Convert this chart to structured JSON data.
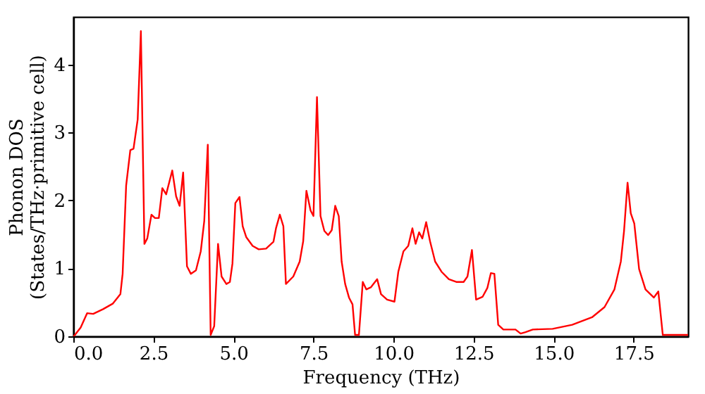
{
  "chart_data": {
    "type": "line",
    "xlabel": "Frequency (THz)",
    "ylabel": "Phonon DOS\n(States/THz·primitive cell)",
    "xlim": [
      0,
      19.2
    ],
    "ylim": [
      0,
      4.7
    ],
    "xticks": [
      {
        "value": 0,
        "label": "0.0"
      },
      {
        "value": 2.5,
        "label": "2.5"
      },
      {
        "value": 5,
        "label": "5.0"
      },
      {
        "value": 7.5,
        "label": "7.5"
      },
      {
        "value": 10,
        "label": "10.0"
      },
      {
        "value": 12.5,
        "label": "12.5"
      },
      {
        "value": 15,
        "label": "15.0"
      },
      {
        "value": 17.5,
        "label": "17.5"
      }
    ],
    "yticks": [
      0,
      1,
      2,
      3,
      4
    ],
    "grid": false,
    "line_style": "solid",
    "marker": "none",
    "series": [
      {
        "color": "#ff0000",
        "x": [
          0,
          0.05,
          0.23,
          0.43,
          0.62,
          0.93,
          1.23,
          1.47,
          1.54,
          1.65,
          1.78,
          1.88,
          2.01,
          2.11,
          2.22,
          2.31,
          2.44,
          2.55,
          2.67,
          2.78,
          2.9,
          3.09,
          3.21,
          3.32,
          3.43,
          3.55,
          3.67,
          3.83,
          3.98,
          4.09,
          4.2,
          4.29,
          4.4,
          4.52,
          4.63,
          4.78,
          4.89,
          4.97,
          5.06,
          5.19,
          5.29,
          5.4,
          5.6,
          5.79,
          6.02,
          6.25,
          6.33,
          6.45,
          6.56,
          6.64,
          6.87,
          7.07,
          7.18,
          7.28,
          7.41,
          7.5,
          7.61,
          7.72,
          7.84,
          7.96,
          8.07,
          8.18,
          8.29,
          8.38,
          8.49,
          8.61,
          8.72,
          8.8,
          8.92,
          9.04,
          9.15,
          9.29,
          9.49,
          9.61,
          9.8,
          10.03,
          10.15,
          10.31,
          10.46,
          10.59,
          10.69,
          10.8,
          10.9,
          11.02,
          11.14,
          11.3,
          11.5,
          11.73,
          11.96,
          12.19,
          12.31,
          12.45,
          12.58,
          12.78,
          12.93,
          13.04,
          13.15,
          13.27,
          13.43,
          13.73,
          13.81,
          13.97,
          14.12,
          14.35,
          14.97,
          15.58,
          16.2,
          16.59,
          16.9,
          17.1,
          17.2,
          17.31,
          17.41,
          17.52,
          17.67,
          17.87,
          18.13,
          18.27,
          18.41,
          19.2
        ],
        "values": [
          0,
          0.02,
          0.13,
          0.34,
          0.33,
          0.4,
          0.48,
          0.62,
          0.92,
          2.22,
          2.74,
          2.76,
          3.19,
          4.49,
          1.36,
          1.44,
          1.79,
          1.74,
          1.74,
          2.18,
          2.09,
          2.44,
          2.06,
          1.92,
          2.41,
          1.03,
          0.92,
          0.97,
          1.25,
          1.7,
          2.82,
          0.02,
          0.15,
          1.36,
          0.88,
          0.77,
          0.8,
          1.07,
          1.96,
          2.05,
          1.62,
          1.46,
          1.33,
          1.28,
          1.29,
          1.39,
          1.59,
          1.79,
          1.62,
          0.77,
          0.88,
          1.1,
          1.4,
          2.14,
          1.85,
          1.77,
          3.52,
          1.77,
          1.55,
          1.49,
          1.56,
          1.92,
          1.77,
          1.1,
          0.77,
          0.57,
          0.47,
          0.02,
          0.02,
          0.8,
          0.69,
          0.72,
          0.84,
          0.62,
          0.54,
          0.51,
          0.95,
          1.25,
          1.33,
          1.59,
          1.36,
          1.53,
          1.44,
          1.68,
          1.4,
          1.1,
          0.95,
          0.84,
          0.8,
          0.8,
          0.88,
          1.27,
          0.54,
          0.58,
          0.71,
          0.93,
          0.92,
          0.17,
          0.1,
          0.1,
          0.1,
          0.04,
          0.06,
          0.1,
          0.11,
          0.17,
          0.28,
          0.43,
          0.69,
          1.1,
          1.55,
          2.26,
          1.81,
          1.66,
          0.99,
          0.69,
          0.57,
          0.66,
          0.02,
          0.02
        ]
      }
    ]
  }
}
